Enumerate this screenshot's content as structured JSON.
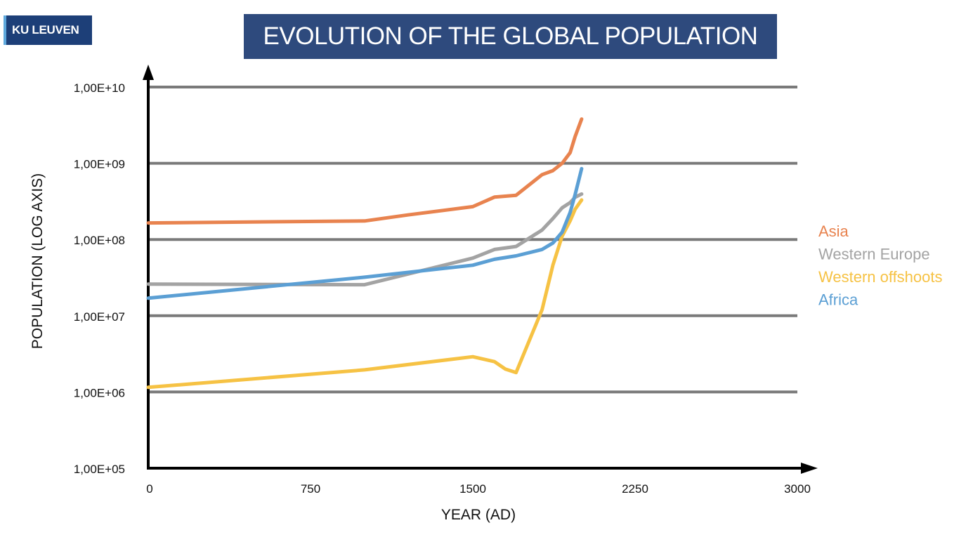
{
  "header": {
    "logo_text": "KU LEUVEN",
    "title": "EVOLUTION OF THE GLOBAL POPULATION"
  },
  "chart_data": {
    "type": "line",
    "title": "EVOLUTION OF THE GLOBAL POPULATION",
    "xlabel": "YEAR (AD)",
    "ylabel": "POPULATION (LOG AXIS)",
    "xlim": [
      0,
      3000
    ],
    "ylim": [
      100000,
      10000000000
    ],
    "y_scale": "log",
    "x_ticks": [
      0,
      750,
      1500,
      2250,
      3000
    ],
    "x_tick_labels": [
      "0",
      "750",
      "1500",
      "2250",
      "3000"
    ],
    "y_ticks": [
      100000,
      1000000,
      10000000,
      100000000,
      1000000000,
      10000000000
    ],
    "y_tick_labels": [
      "1,00E+05",
      "1,00E+06",
      "1,00E+07",
      "1,00E+08",
      "1,00E+09",
      "1,00E+10"
    ],
    "gridlines_at": [
      1000000,
      10000000,
      100000000,
      1000000000,
      10000000000
    ],
    "grid": true,
    "legend_position": "right",
    "series": [
      {
        "name": "Asia",
        "color": "#e8834f",
        "x": [
          0,
          1000,
          1200,
          1500,
          1600,
          1700,
          1820,
          1870,
          1913,
          1950,
          1973,
          2003
        ],
        "y": [
          165000000,
          175000000,
          210000000,
          270000000,
          360000000,
          380000000,
          710000000,
          800000000,
          1000000000,
          1380000000,
          2250000000,
          3800000000
        ]
      },
      {
        "name": "Western Europe",
        "color": "#a3a3a3",
        "x": [
          0,
          1000,
          1500,
          1600,
          1700,
          1820,
          1870,
          1913,
          1950,
          1973,
          2003
        ],
        "y": [
          26000000,
          25500000,
          57000000,
          74000000,
          81000000,
          133000000,
          188000000,
          261000000,
          305000000,
          358000000,
          395000000
        ]
      },
      {
        "name": "Western offshoots",
        "color": "#f6c244",
        "x": [
          0,
          1000,
          1500,
          1600,
          1650,
          1700,
          1820,
          1870,
          1913,
          1950,
          1973,
          2003
        ],
        "y": [
          1150000,
          1950000,
          2900000,
          2500000,
          2000000,
          1800000,
          12000000,
          46000000,
          111000000,
          176000000,
          250000000,
          330000000
        ]
      },
      {
        "name": "Africa",
        "color": "#5b9fd4",
        "x": [
          0,
          1000,
          1500,
          1600,
          1700,
          1820,
          1870,
          1913,
          1950,
          1973,
          2003
        ],
        "y": [
          17000000,
          32000000,
          46000000,
          55000000,
          61000000,
          74000000,
          90000000,
          125000000,
          227000000,
          390000000,
          850000000
        ]
      }
    ]
  }
}
